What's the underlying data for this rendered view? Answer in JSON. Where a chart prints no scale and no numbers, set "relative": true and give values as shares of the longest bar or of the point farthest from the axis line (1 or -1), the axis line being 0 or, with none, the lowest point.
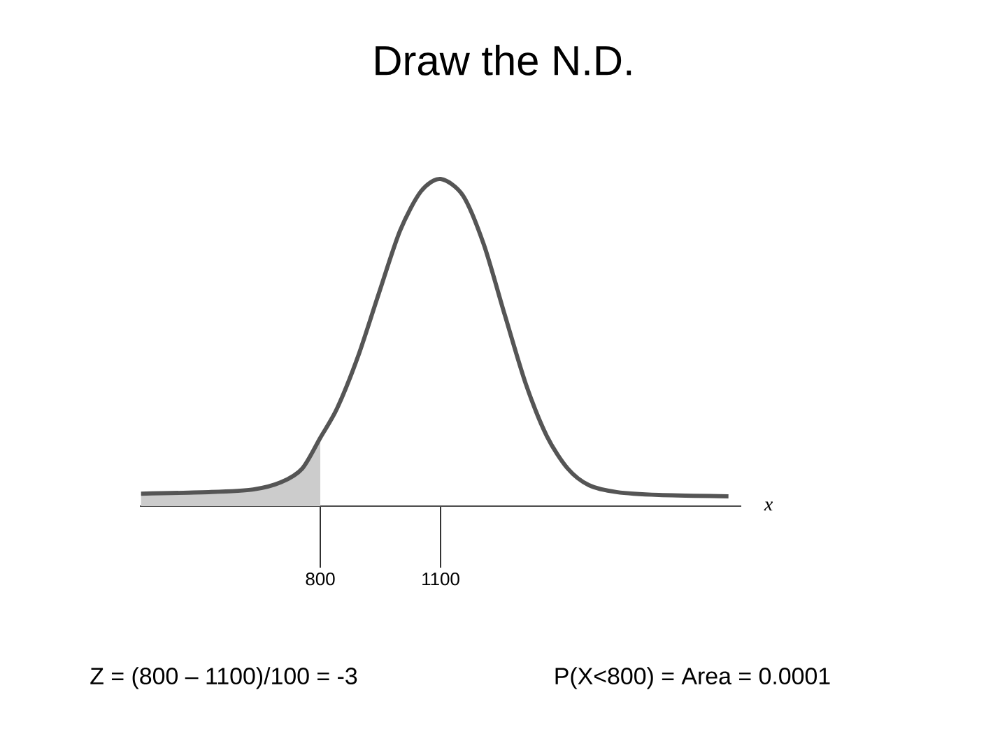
{
  "chart_data": {
    "type": "line",
    "title": "Draw the N.D.",
    "xlabel": "x",
    "relative": true,
    "xlim": [
      350,
      1850
    ],
    "xticks": [
      800,
      1100
    ],
    "series": [
      {
        "type": "area",
        "color": "#cccccc",
        "x": [
          353,
          528,
          633,
          702,
          755,
          800
        ],
        "values": [
          0.038,
          0.043,
          0.051,
          0.073,
          0.115,
          0.209
        ]
      },
      {
        "color": "#555555",
        "x": [
          353,
          528,
          633,
          702,
          755,
          800,
          842,
          894,
          946,
          999,
          1051,
          1100,
          1156,
          1208,
          1260,
          1313,
          1365,
          1417,
          1470,
          1539,
          1644,
          1818
        ],
        "values": [
          0.038,
          0.043,
          0.051,
          0.073,
          0.115,
          0.209,
          0.299,
          0.457,
          0.65,
          0.842,
          0.962,
          1,
          0.949,
          0.799,
          0.585,
          0.372,
          0.214,
          0.115,
          0.064,
          0.043,
          0.034,
          0.03
        ]
      }
    ],
    "annotations": [
      "Z = (800 – 1100)/100 = -3",
      "P(X<800) = Area = 0.0001"
    ]
  }
}
